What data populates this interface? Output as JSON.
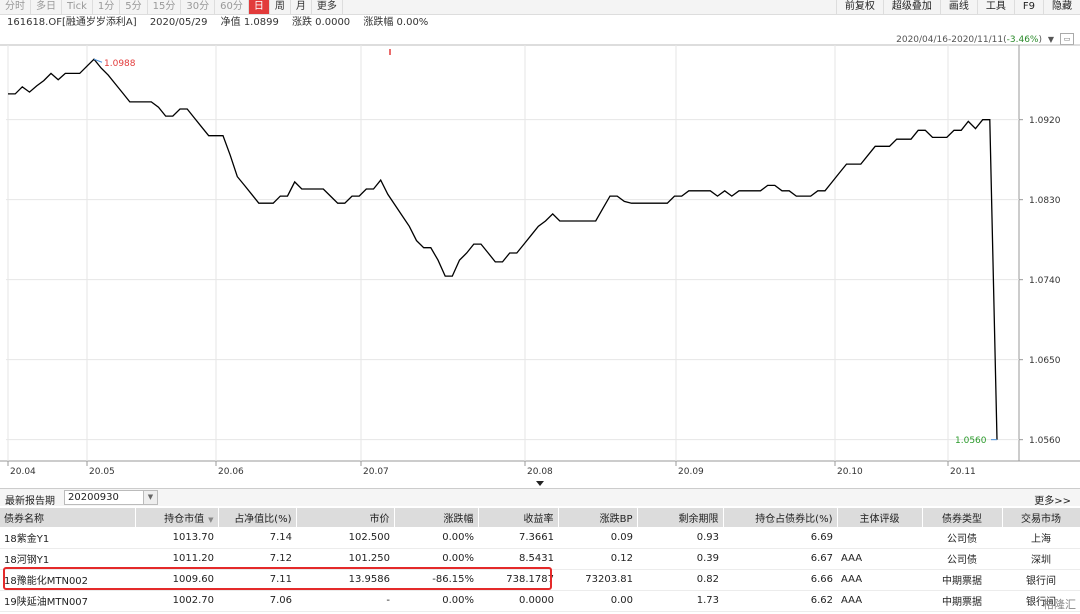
{
  "toolbar": {
    "periods": [
      "分时",
      "多日",
      "Tick",
      "1分",
      "5分",
      "15分",
      "30分",
      "60分",
      "日",
      "周",
      "月",
      "更多"
    ],
    "active": "日",
    "right_buttons": [
      "前复权",
      "超级叠加",
      "画线",
      "工具",
      "F9",
      "隐藏"
    ]
  },
  "info": {
    "code": "161618.OF[融通岁岁添利A]",
    "date": "2020/05/29",
    "nav": "净值 1.0899",
    "change": "涨跌 0.0000",
    "pct": "涨跌幅 0.00%"
  },
  "range": {
    "text": "2020/04/16-2020/11/11(",
    "pct": "-3.46%",
    "close": ")"
  },
  "colors": {
    "accent": "#e23b3b",
    "down": "#2a8a2a",
    "line": "#000000"
  },
  "chart_data": {
    "type": "line",
    "ylim": [
      1.0536,
      1.1004
    ],
    "y_ticks": [
      "1.0920",
      "1.0830",
      "1.0740",
      "1.0650",
      "1.0560"
    ],
    "x_ticks": [
      "20.04",
      "20.05",
      "20.06",
      "20.07",
      "20.08",
      "20.09",
      "20.10",
      "20.11"
    ],
    "max_label": "1.0988",
    "min_label": "1.0560",
    "series": [
      {
        "values": [
          1.0949,
          1.0949,
          1.0957,
          1.0951,
          1.0958,
          1.0964,
          1.0972,
          1.0965,
          1.0972,
          1.0972,
          1.0972,
          1.098,
          1.0988,
          1.0978,
          1.097,
          1.096,
          1.095,
          1.094,
          1.094,
          1.094,
          1.094,
          1.0934,
          1.0924,
          1.0924,
          1.0932,
          1.0932,
          1.0922,
          1.0912,
          1.0902,
          1.0902,
          1.0902,
          1.088,
          1.0856,
          1.0846,
          1.0836,
          1.0826,
          1.0826,
          1.0826,
          1.0834,
          1.0834,
          1.085,
          1.0842,
          1.0842,
          1.0842,
          1.0842,
          1.0834,
          1.0826,
          1.0826,
          1.0834,
          1.0834,
          1.0842,
          1.0842,
          1.0852,
          1.0836,
          1.0824,
          1.0812,
          1.08,
          1.0784,
          1.0776,
          1.0776,
          1.0762,
          1.0744,
          1.0744,
          1.0762,
          1.077,
          1.078,
          1.078,
          1.077,
          1.076,
          1.076,
          1.077,
          1.077,
          1.078,
          1.079,
          1.08,
          1.0806,
          1.0814,
          1.0806,
          1.0806,
          1.0806,
          1.0806,
          1.0806,
          1.0806,
          1.082,
          1.0834,
          1.0834,
          1.0828,
          1.0826,
          1.0826,
          1.0826,
          1.0826,
          1.0826,
          1.0826,
          1.0834,
          1.0834,
          1.084,
          1.084,
          1.084,
          1.084,
          1.0834,
          1.084,
          1.0834,
          1.084,
          1.084,
          1.084,
          1.084,
          1.0846,
          1.0846,
          1.084,
          1.084,
          1.0834,
          1.0834,
          1.0834,
          1.084,
          1.084,
          1.085,
          1.086,
          1.087,
          1.087,
          1.087,
          1.088,
          1.089,
          1.089,
          1.089,
          1.0898,
          1.0898,
          1.0898,
          1.0908,
          1.0908,
          1.09,
          1.09,
          1.09,
          1.0908,
          1.0908,
          1.0918,
          1.091,
          1.092,
          1.092,
          1.056
        ]
      }
    ]
  },
  "table": {
    "period_label": "最新报告期",
    "period_value": "20200930",
    "more": "更多>>",
    "headers": [
      "债券名称",
      "持仓市值",
      "占净值比(%)",
      "市价",
      "涨跌幅",
      "收益率",
      "涨跌BP",
      "剩余期限",
      "持仓占债券比(%)",
      "主体评级",
      "债券类型",
      "交易市场"
    ],
    "rows": [
      [
        "18紫金Y1",
        "1013.70",
        "7.14",
        "102.500",
        "0.00%",
        "7.3661",
        "0.09",
        "0.93",
        "6.69",
        "",
        "公司债",
        "上海"
      ],
      [
        "18河钢Y1",
        "1011.20",
        "7.12",
        "101.250",
        "0.00%",
        "8.5431",
        "0.12",
        "0.39",
        "6.67",
        "AAA",
        "公司债",
        "深圳"
      ],
      [
        "18豫能化MTN002",
        "1009.60",
        "7.11",
        "13.9586",
        "-86.15%",
        "738.1787",
        "73203.81",
        "0.82",
        "6.66",
        "AAA",
        "中期票据",
        "银行间"
      ],
      [
        "19陕延油MTN007",
        "1002.70",
        "7.06",
        "-",
        "0.00%",
        "0.0000",
        "0.00",
        "1.73",
        "6.62",
        "AAA",
        "中期票据",
        "银行间"
      ]
    ]
  },
  "watermark": "格隆汇"
}
